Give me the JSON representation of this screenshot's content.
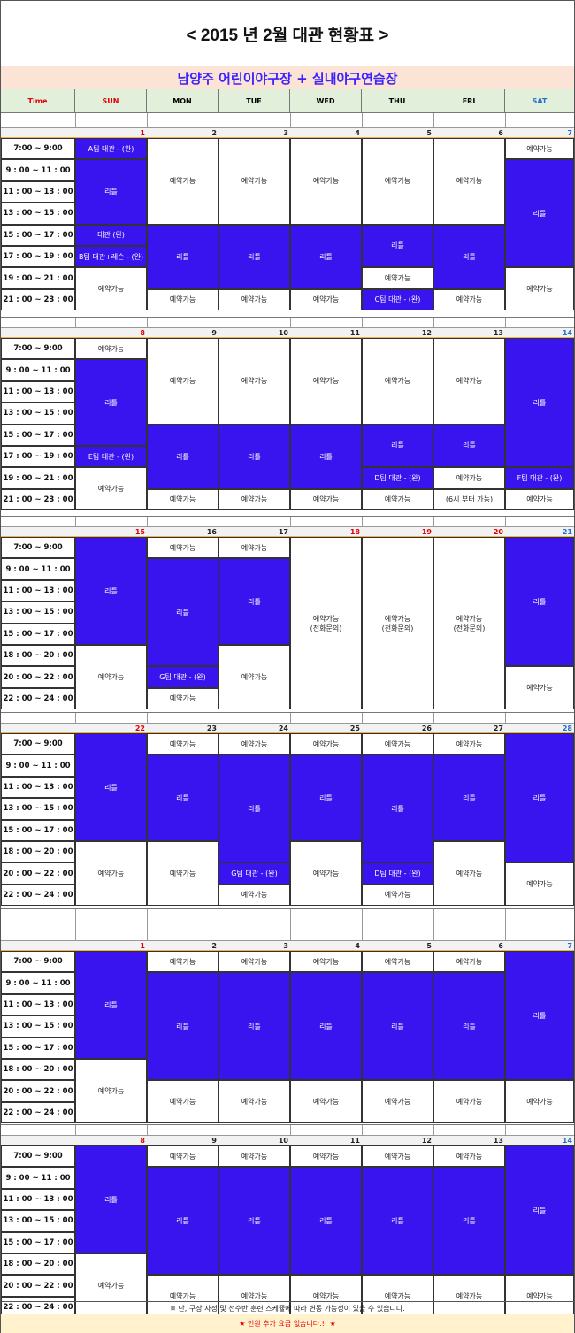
{
  "title": "< 2015 년 2월 대관 현황표 >",
  "venue": "남양주 어린이야구장 + 실내야구연습장",
  "header": {
    "time": "Time",
    "days": [
      "SUN",
      "MON",
      "TUE",
      "WED",
      "THU",
      "FRI",
      "SAT"
    ]
  },
  "colors": {
    "booked": "#3a14ee",
    "header_bg": "#e2efda",
    "venue_bg": "#fbe4d5",
    "notice_bg": "#fff2cc",
    "sunday": "#e00000",
    "saturday": "#1f6fd0"
  },
  "weeks": [
    {
      "dates": [
        "1",
        "2",
        "3",
        "4",
        "5",
        "6",
        "7"
      ],
      "holidays": [],
      "times": [
        "7:00 ~ 9:00",
        "9 : 00 ~ 11 : 00",
        "11 : 00 ~ 13 : 00",
        "13 : 00 ~ 15 : 00",
        "15 : 00 ~ 17 : 00",
        "17 : 00 ~ 19 : 00",
        "19 : 00 ~ 21 : 00",
        "21 : 00 ~ 23 : 00"
      ],
      "blocks": [
        [
          0,
          0,
          1,
          "A팀 대관 - (완)",
          true
        ],
        [
          0,
          1,
          3,
          "리틀",
          true
        ],
        [
          0,
          4,
          1,
          "대관 (완)",
          true
        ],
        [
          0,
          5,
          1,
          "B팀 대관+레슨 - (완)",
          true
        ],
        [
          0,
          6,
          2,
          "예약가능",
          false
        ],
        [
          1,
          0,
          4,
          "예약가능",
          false
        ],
        [
          1,
          4,
          3,
          "리틀",
          true
        ],
        [
          1,
          7,
          1,
          "예약가능",
          false
        ],
        [
          2,
          0,
          4,
          "예약가능",
          false
        ],
        [
          2,
          4,
          3,
          "리틀",
          true
        ],
        [
          2,
          7,
          1,
          "예약가능",
          false
        ],
        [
          3,
          0,
          4,
          "예약가능",
          false
        ],
        [
          3,
          4,
          3,
          "리틀",
          true
        ],
        [
          3,
          7,
          1,
          "예약가능",
          false
        ],
        [
          4,
          0,
          4,
          "예약가능",
          false
        ],
        [
          4,
          4,
          2,
          "리틀",
          true
        ],
        [
          4,
          6,
          1,
          "예약가능",
          false
        ],
        [
          4,
          7,
          1,
          "C팀 대관 - (완)",
          true
        ],
        [
          5,
          0,
          4,
          "예약가능",
          false
        ],
        [
          5,
          4,
          3,
          "리틀",
          true
        ],
        [
          5,
          7,
          1,
          "예약가능",
          false
        ],
        [
          6,
          0,
          1,
          "예약가능",
          false
        ],
        [
          6,
          1,
          5,
          "리틀",
          true
        ],
        [
          6,
          6,
          2,
          "예약가능",
          false
        ]
      ]
    },
    {
      "dates": [
        "8",
        "9",
        "10",
        "11",
        "12",
        "13",
        "14"
      ],
      "holidays": [],
      "times": [
        "7:00 ~ 9:00",
        "9 : 00 ~ 11 : 00",
        "11 : 00 ~ 13 : 00",
        "13 : 00 ~ 15 : 00",
        "15 : 00 ~ 17 : 00",
        "17 : 00 ~ 19 : 00",
        "19 : 00 ~ 21 : 00",
        "21 : 00 ~ 23 : 00"
      ],
      "blocks": [
        [
          0,
          0,
          1,
          "예약가능",
          false
        ],
        [
          0,
          1,
          4,
          "리틀",
          true
        ],
        [
          0,
          5,
          1,
          "E팀 대관 - (완)",
          true
        ],
        [
          0,
          6,
          2,
          "예약가능",
          false
        ],
        [
          1,
          0,
          4,
          "예약가능",
          false
        ],
        [
          1,
          4,
          3,
          "리틀",
          true
        ],
        [
          1,
          7,
          1,
          "예약가능",
          false
        ],
        [
          2,
          0,
          4,
          "예약가능",
          false
        ],
        [
          2,
          4,
          3,
          "리틀",
          true
        ],
        [
          2,
          7,
          1,
          "예약가능",
          false
        ],
        [
          3,
          0,
          4,
          "예약가능",
          false
        ],
        [
          3,
          4,
          3,
          "리틀",
          true
        ],
        [
          3,
          7,
          1,
          "예약가능",
          false
        ],
        [
          4,
          0,
          4,
          "예약가능",
          false
        ],
        [
          4,
          4,
          2,
          "리틀",
          true
        ],
        [
          4,
          6,
          1,
          "D팀 대관 - (완)",
          true
        ],
        [
          4,
          7,
          1,
          "예약가능",
          false
        ],
        [
          5,
          0,
          4,
          "예약가능",
          false
        ],
        [
          5,
          4,
          2,
          "리틀",
          true
        ],
        [
          5,
          6,
          1,
          "예약가능",
          false
        ],
        [
          5,
          7,
          1,
          "(6시 부터 가능)",
          false
        ],
        [
          6,
          0,
          6,
          "리틀",
          true
        ],
        [
          6,
          6,
          1,
          "F팀 대관 - (완)",
          true
        ],
        [
          6,
          7,
          1,
          "예약가능",
          false
        ]
      ]
    },
    {
      "dates": [
        "15",
        "16",
        "17",
        "18",
        "19",
        "20",
        "21"
      ],
      "holidays": [
        3,
        4,
        5
      ],
      "times": [
        "7:00 ~ 9:00",
        "9 : 00 ~ 11 : 00",
        "11 : 00 ~ 13 : 00",
        "13 : 00 ~ 15 : 00",
        "15 : 00 ~ 17 : 00",
        "18 : 00 ~ 20 : 00",
        "20 : 00 ~ 22 : 00",
        "22 : 00 ~ 24 : 00"
      ],
      "blocks": [
        [
          0,
          0,
          5,
          "리틀",
          true
        ],
        [
          0,
          5,
          3,
          "예약가능",
          false
        ],
        [
          1,
          0,
          1,
          "예약가능",
          false
        ],
        [
          1,
          1,
          5,
          "리틀",
          true
        ],
        [
          1,
          6,
          1,
          "G팀 대관 - (완)",
          true
        ],
        [
          1,
          7,
          1,
          "예약가능",
          false
        ],
        [
          2,
          0,
          1,
          "예약가능",
          false
        ],
        [
          2,
          1,
          4,
          "리틀",
          true
        ],
        [
          2,
          5,
          3,
          "예약가능",
          false
        ],
        [
          3,
          0,
          8,
          "예약가능\n(전화문의)",
          false
        ],
        [
          4,
          0,
          8,
          "예약가능\n(전화문의)",
          false
        ],
        [
          5,
          0,
          8,
          "예약가능\n(전화문의)",
          false
        ],
        [
          6,
          0,
          6,
          "리틀",
          true
        ],
        [
          6,
          6,
          2,
          "예약가능",
          false
        ]
      ]
    },
    {
      "dates": [
        "22",
        "23",
        "24",
        "25",
        "26",
        "27",
        "28"
      ],
      "holidays": [],
      "times": [
        "7:00 ~ 9:00",
        "9 : 00 ~ 11 : 00",
        "11 : 00 ~ 13 : 00",
        "13 : 00 ~ 15 : 00",
        "15 : 00 ~ 17 : 00",
        "18 : 00 ~ 20 : 00",
        "20 : 00 ~ 22 : 00",
        "22 : 00 ~ 24 : 00"
      ],
      "blocks": [
        [
          0,
          0,
          5,
          "리틀",
          true
        ],
        [
          0,
          5,
          3,
          "예약가능",
          false
        ],
        [
          1,
          0,
          1,
          "예약가능",
          false
        ],
        [
          1,
          1,
          4,
          "리틀",
          true
        ],
        [
          1,
          5,
          3,
          "예약가능",
          false
        ],
        [
          2,
          0,
          1,
          "예약가능",
          false
        ],
        [
          2,
          1,
          5,
          "리틀",
          true
        ],
        [
          2,
          6,
          1,
          "G팀 대관 - (완)",
          true
        ],
        [
          2,
          7,
          1,
          "예약가능",
          false
        ],
        [
          3,
          0,
          1,
          "예약가능",
          false
        ],
        [
          3,
          1,
          4,
          "리틀",
          true
        ],
        [
          3,
          5,
          3,
          "예약가능",
          false
        ],
        [
          4,
          0,
          1,
          "예약가능",
          false
        ],
        [
          4,
          1,
          5,
          "리틀",
          true
        ],
        [
          4,
          6,
          1,
          "D팀 대관 - (완)",
          true
        ],
        [
          4,
          7,
          1,
          "예약가능",
          false
        ],
        [
          5,
          0,
          1,
          "예약가능",
          false
        ],
        [
          5,
          1,
          4,
          "리틀",
          true
        ],
        [
          5,
          5,
          3,
          "예약가능",
          false
        ],
        [
          6,
          0,
          6,
          "리틀",
          true
        ],
        [
          6,
          6,
          2,
          "예약가능",
          false
        ]
      ]
    },
    {
      "dates": [
        "1",
        "2",
        "3",
        "4",
        "5",
        "6",
        "7"
      ],
      "holidays": [],
      "times": [
        "7:00 ~ 9:00",
        "9 : 00 ~ 11 : 00",
        "11 : 00 ~ 13 : 00",
        "13 : 00 ~ 15 : 00",
        "15 : 00 ~ 17 : 00",
        "18 : 00 ~ 20 : 00",
        "20 : 00 ~ 22 : 00",
        "22 : 00 ~ 24 : 00"
      ],
      "blocks": [
        [
          0,
          0,
          5,
          "리틀",
          true
        ],
        [
          0,
          5,
          3,
          "예약가능",
          false
        ],
        [
          1,
          0,
          1,
          "예약가능",
          false
        ],
        [
          1,
          1,
          5,
          "리틀",
          true
        ],
        [
          1,
          6,
          2,
          "예약가능",
          false
        ],
        [
          2,
          0,
          1,
          "예약가능",
          false
        ],
        [
          2,
          1,
          5,
          "리틀",
          true
        ],
        [
          2,
          6,
          2,
          "예약가능",
          false
        ],
        [
          3,
          0,
          1,
          "예약가능",
          false
        ],
        [
          3,
          1,
          5,
          "리틀",
          true
        ],
        [
          3,
          6,
          2,
          "예약가능",
          false
        ],
        [
          4,
          0,
          1,
          "예약가능",
          false
        ],
        [
          4,
          1,
          5,
          "리틀",
          true
        ],
        [
          4,
          6,
          2,
          "예약가능",
          false
        ],
        [
          5,
          0,
          1,
          "예약가능",
          false
        ],
        [
          5,
          1,
          5,
          "리틀",
          true
        ],
        [
          5,
          6,
          2,
          "예약가능",
          false
        ],
        [
          6,
          0,
          6,
          "리틀",
          true
        ],
        [
          6,
          6,
          2,
          "예약가능",
          false
        ]
      ]
    },
    {
      "dates": [
        "8",
        "9",
        "10",
        "11",
        "12",
        "13",
        "14"
      ],
      "holidays": [],
      "times": [
        "7:00 ~ 9:00",
        "9 : 00 ~ 11 : 00",
        "11 : 00 ~ 13 : 00",
        "13 : 00 ~ 15 : 00",
        "15 : 00 ~ 17 : 00",
        "18 : 00 ~ 20 : 00",
        "20 : 00 ~ 22 : 00",
        "22 : 00 ~ 24 : 00"
      ],
      "blocks": [
        [
          0,
          0,
          5,
          "리틀",
          true
        ],
        [
          0,
          5,
          3,
          "예약가능",
          false
        ],
        [
          1,
          0,
          1,
          "예약가능",
          false
        ],
        [
          1,
          1,
          5,
          "리틀",
          true
        ],
        [
          1,
          6,
          2,
          "예약가능",
          false
        ],
        [
          2,
          0,
          1,
          "예약가능",
          false
        ],
        [
          2,
          1,
          5,
          "리틀",
          true
        ],
        [
          2,
          6,
          2,
          "예약가능",
          false
        ],
        [
          3,
          0,
          1,
          "예약가능",
          false
        ],
        [
          3,
          1,
          5,
          "리틀",
          true
        ],
        [
          3,
          6,
          2,
          "예약가능",
          false
        ],
        [
          4,
          0,
          1,
          "예약가능",
          false
        ],
        [
          4,
          1,
          5,
          "리틀",
          true
        ],
        [
          4,
          6,
          2,
          "예약가능",
          false
        ],
        [
          5,
          0,
          1,
          "예약가능",
          false
        ],
        [
          5,
          1,
          5,
          "리틀",
          true
        ],
        [
          5,
          6,
          2,
          "예약가능",
          false
        ],
        [
          6,
          0,
          6,
          "리틀",
          true
        ],
        [
          6,
          6,
          2,
          "예약가능",
          false
        ]
      ]
    }
  ],
  "footer_note": "※ 단, 구장 사정 및 선수반 훈련 스케쥴에 따라 변동 가능성이 있을 수 있습니다.",
  "footer_notice": "★ 인원 추가 요금 없습니다.!! ★"
}
